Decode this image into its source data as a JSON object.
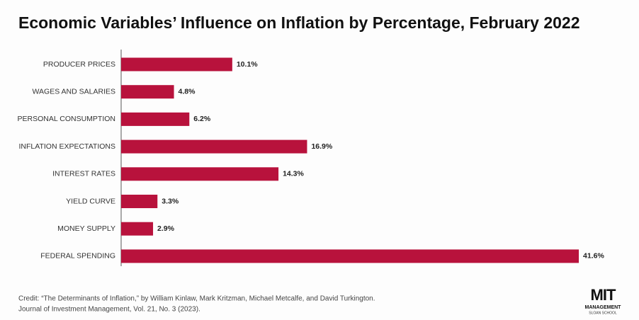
{
  "chart_data": {
    "type": "bar",
    "orientation": "horizontal",
    "title": "Economic Variables’ Influence on Inflation by Percentage, February 2022",
    "categories": [
      "PRODUCER PRICES",
      "WAGES AND SALARIES",
      "PERSONAL CONSUMPTION",
      "INFLATION EXPECTATIONS",
      "INTEREST RATES",
      "YIELD CURVE",
      "MONEY SUPPLY",
      "FEDERAL SPENDING"
    ],
    "values": [
      10.1,
      4.8,
      6.2,
      16.9,
      14.3,
      3.3,
      2.9,
      41.6
    ],
    "value_labels": [
      "10.1%",
      "4.8%",
      "6.2%",
      "16.9%",
      "14.3%",
      "3.3%",
      "2.9%",
      "41.6%"
    ],
    "color": "#b8123c",
    "credit": [
      "Credit: “The Determinants of Inflation,” by William Kinlaw, Mark Kritzman, Michael Metcalfe, and David Turkington.",
      "Journal of Investment Management, Vol. 21, No. 3 (2023)."
    ],
    "logo": [
      "MIT",
      "MANAGEMENT",
      "SLOAN SCHOOL"
    ]
  }
}
